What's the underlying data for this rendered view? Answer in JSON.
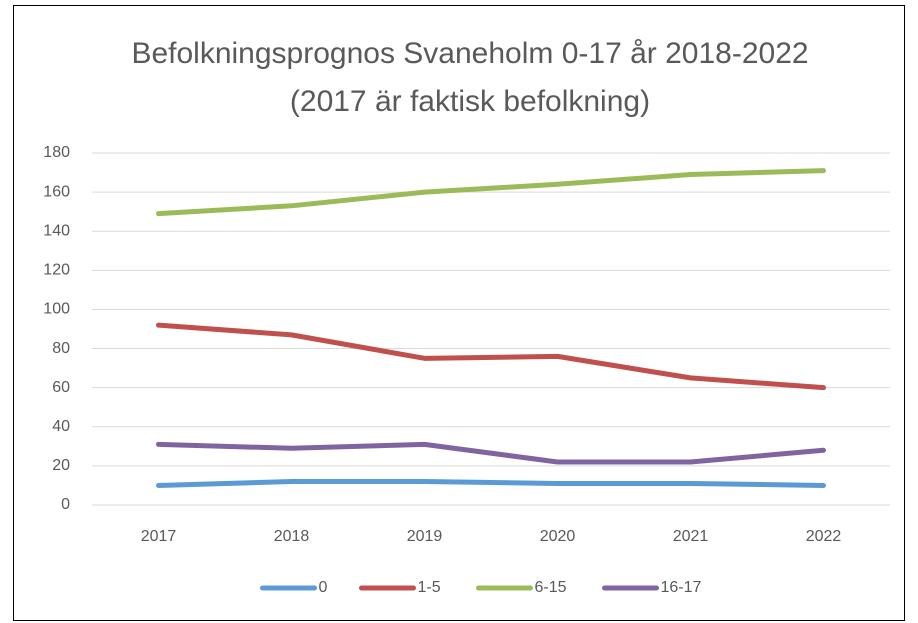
{
  "chart_data": {
    "type": "line",
    "title": "Befolkningsprognos Svaneholm 0-17 år 2018-2022 (2017 är faktisk befolkning)",
    "categories": [
      "2017",
      "2018",
      "2019",
      "2020",
      "2021",
      "2022"
    ],
    "series": [
      {
        "name": "0",
        "color": "#5b9bd5",
        "values": [
          10,
          12,
          12,
          11,
          11,
          10
        ]
      },
      {
        "name": "1-5",
        "color": "#c0504d",
        "values": [
          92,
          87,
          75,
          76,
          65,
          60
        ]
      },
      {
        "name": "6-15",
        "color": "#9bbb59",
        "values": [
          149,
          153,
          160,
          164,
          169,
          171
        ]
      },
      {
        "name": "16-17",
        "color": "#8064a2",
        "values": [
          31,
          29,
          31,
          22,
          22,
          28
        ]
      }
    ],
    "ylim": [
      0,
      180
    ],
    "yticks": [
      0,
      20,
      40,
      60,
      80,
      100,
      120,
      140,
      160,
      180
    ],
    "grid": true,
    "legend": "bottom"
  }
}
